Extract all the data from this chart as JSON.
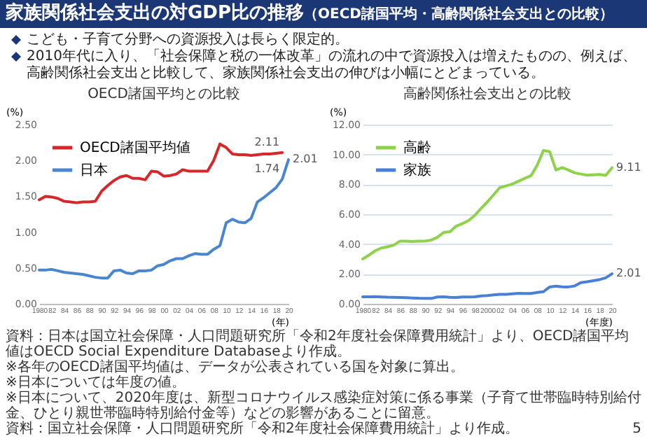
{
  "chart_data": [
    {
      "type": "other",
      "title": "家族関係社会支出の対GDP比の推移",
      "subtitle": "（OECD諸国平均・高齢関係社会支出との比較）",
      "annotations": [
        "こども・子育て分野への資源投入は長らく限定的。",
        "2010年代に入り、「社会保障と税の一体改革」の流れの中で資源投入は増えたものの、例えば、高齢関係社会支出と比較して、家族関係社会支出の伸びは小幅にとどまっている。"
      ]
    },
    {
      "type": "line",
      "title": "OECD諸国平均との比較",
      "ylabel": "(%)",
      "xlabel": "(年)",
      "legend": "top left",
      "grid": false,
      "x": [
        1980,
        1981,
        1982,
        1983,
        1984,
        1985,
        1986,
        1987,
        1988,
        1989,
        1990,
        1991,
        1992,
        1993,
        1994,
        1995,
        1996,
        1997,
        1998,
        1999,
        2000,
        2001,
        2002,
        2003,
        2004,
        2005,
        2006,
        2007,
        2008,
        2009,
        2010,
        2011,
        2012,
        2013,
        2014,
        2015,
        2016,
        2017,
        2018,
        2019,
        2020
      ],
      "xlim": [
        1980,
        2020
      ],
      "xticks": [
        {
          "value": 1980,
          "label": "1980"
        },
        {
          "value": 1982,
          "label": "82"
        },
        {
          "value": 1984,
          "label": "84"
        },
        {
          "value": 1986,
          "label": "86"
        },
        {
          "value": 1988,
          "label": "88"
        },
        {
          "value": 1990,
          "label": "90"
        },
        {
          "value": 1992,
          "label": "92"
        },
        {
          "value": 1994,
          "label": "94"
        },
        {
          "value": 1996,
          "label": "96"
        },
        {
          "value": 1998,
          "label": "98"
        },
        {
          "value": 2000,
          "label": "00"
        },
        {
          "value": 2002,
          "label": "02"
        },
        {
          "value": 2004,
          "label": "04"
        },
        {
          "value": 2006,
          "label": "06"
        },
        {
          "value": 2008,
          "label": "08"
        },
        {
          "value": 2010,
          "label": "10"
        },
        {
          "value": 2012,
          "label": "12"
        },
        {
          "value": 2014,
          "label": "14"
        },
        {
          "value": 2016,
          "label": "16"
        },
        {
          "value": 2018,
          "label": "18"
        },
        {
          "value": 2020,
          "label": "20"
        }
      ],
      "ylim": [
        0,
        2.5
      ],
      "yticks": [
        {
          "value": 0,
          "label": "0.00"
        },
        {
          "value": 0.5,
          "label": "0.50"
        },
        {
          "value": 1,
          "label": "1.00"
        },
        {
          "value": 1.5,
          "label": "1.50"
        },
        {
          "value": 2,
          "label": "2.00"
        },
        {
          "value": 2.5,
          "label": "2.50"
        }
      ],
      "series": [
        {
          "name": "OECD諸国平均値",
          "color": "#d7272b",
          "values": [
            1.45,
            1.5,
            1.49,
            1.47,
            1.43,
            1.42,
            1.41,
            1.42,
            1.42,
            1.43,
            1.57,
            1.65,
            1.72,
            1.77,
            1.79,
            1.75,
            1.75,
            1.73,
            1.85,
            1.84,
            1.78,
            1.79,
            1.81,
            1.87,
            1.85,
            1.85,
            1.85,
            1.85,
            2.0,
            2.23,
            2.18,
            2.09,
            2.08,
            2.08,
            2.07,
            2.08,
            2.09,
            2.09,
            2.1,
            2.11,
            null
          ],
          "value_labels": [
            null,
            null,
            null,
            null,
            null,
            null,
            null,
            null,
            null,
            null,
            null,
            null,
            null,
            null,
            null,
            null,
            null,
            null,
            null,
            null,
            null,
            null,
            null,
            null,
            null,
            null,
            null,
            null,
            null,
            null,
            null,
            null,
            null,
            null,
            null,
            null,
            null,
            null,
            null,
            "2.11",
            null
          ]
        },
        {
          "name": "日本",
          "color": "#4a86d0",
          "values": [
            0.47,
            0.47,
            0.48,
            0.46,
            0.44,
            0.43,
            0.42,
            0.41,
            0.39,
            0.37,
            0.36,
            0.36,
            0.46,
            0.47,
            0.43,
            0.42,
            0.46,
            0.46,
            0.47,
            0.53,
            0.55,
            0.6,
            0.63,
            0.63,
            0.67,
            0.7,
            0.69,
            0.69,
            0.76,
            0.81,
            1.13,
            1.18,
            1.14,
            1.13,
            1.19,
            1.42,
            1.48,
            1.55,
            1.62,
            1.74,
            2.01
          ],
          "value_labels": [
            null,
            null,
            null,
            null,
            null,
            null,
            null,
            null,
            null,
            null,
            null,
            null,
            null,
            null,
            null,
            null,
            null,
            null,
            null,
            null,
            null,
            null,
            null,
            null,
            null,
            null,
            null,
            null,
            null,
            null,
            null,
            null,
            null,
            null,
            null,
            null,
            null,
            null,
            null,
            "1.74",
            "2.01"
          ]
        }
      ],
      "annotations": [
        "資料：日本は国立社会保障・人口問題研究所「令和2年度社会保障費用統計」より、OECD諸国平均値はOECD Social Expenditure Databaseより作成。",
        "※各年のOECD諸国平均値は、データが公表されている国を対象に算出。",
        "※日本については年度の値。",
        "※日本について、2020年度は、新型コロナウイルス感染症対策に係る事業（子育て世帯臨時特別給付金、ひとり親世帯臨時特別給付金等）などの影響があることに留意。"
      ]
    },
    {
      "type": "line",
      "title": "高齢関係社会支出との比較",
      "ylabel": "(%)",
      "xlabel": "(年度)",
      "legend": "top left",
      "grid": "y",
      "x": [
        1980,
        1981,
        1982,
        1983,
        1984,
        1985,
        1986,
        1987,
        1988,
        1989,
        1990,
        1991,
        1992,
        1993,
        1994,
        1995,
        1996,
        1997,
        1998,
        1999,
        2000,
        2001,
        2002,
        2003,
        2004,
        2005,
        2006,
        2007,
        2008,
        2009,
        2010,
        2011,
        2012,
        2013,
        2014,
        2015,
        2016,
        2017,
        2018,
        2019,
        2020
      ],
      "xlim": [
        1980,
        2020
      ],
      "xticks": [
        {
          "value": 1980,
          "label": "1980"
        },
        {
          "value": 1982,
          "label": "82"
        },
        {
          "value": 1984,
          "label": "84"
        },
        {
          "value": 1986,
          "label": "86"
        },
        {
          "value": 1988,
          "label": "88"
        },
        {
          "value": 1990,
          "label": "90"
        },
        {
          "value": 1992,
          "label": "92"
        },
        {
          "value": 1994,
          "label": "94"
        },
        {
          "value": 1996,
          "label": "96"
        },
        {
          "value": 1998,
          "label": "98"
        },
        {
          "value": 2000,
          "label": "2000"
        },
        {
          "value": 2002,
          "label": "02"
        },
        {
          "value": 2004,
          "label": "04"
        },
        {
          "value": 2006,
          "label": "06"
        },
        {
          "value": 2008,
          "label": "08"
        },
        {
          "value": 2010,
          "label": "10"
        },
        {
          "value": 2012,
          "label": "12"
        },
        {
          "value": 2014,
          "label": "14"
        },
        {
          "value": 2016,
          "label": "16"
        },
        {
          "value": 2018,
          "label": "18"
        },
        {
          "value": 2020,
          "label": "20"
        }
      ],
      "ylim": [
        0,
        12
      ],
      "yticks": [
        {
          "value": 0,
          "label": "0.00"
        },
        {
          "value": 2,
          "label": "2.00"
        },
        {
          "value": 4,
          "label": "4.00"
        },
        {
          "value": 6,
          "label": "6.00"
        },
        {
          "value": 8,
          "label": "8.00"
        },
        {
          "value": 10,
          "label": "10.00"
        },
        {
          "value": 12,
          "label": "12.00"
        }
      ],
      "series": [
        {
          "name": "高齢",
          "color": "#8ed14b",
          "values": [
            3.0,
            3.26,
            3.55,
            3.74,
            3.82,
            3.93,
            4.2,
            4.2,
            4.17,
            4.2,
            4.2,
            4.27,
            4.46,
            4.78,
            4.83,
            5.2,
            5.37,
            5.58,
            5.93,
            6.39,
            6.82,
            7.3,
            7.78,
            7.89,
            8.02,
            8.21,
            8.4,
            8.58,
            9.28,
            10.27,
            10.19,
            8.96,
            9.12,
            8.96,
            8.77,
            8.69,
            8.61,
            8.64,
            8.66,
            8.6,
            9.11
          ],
          "value_labels": [
            null,
            null,
            null,
            null,
            null,
            null,
            null,
            null,
            null,
            null,
            null,
            null,
            null,
            null,
            null,
            null,
            null,
            null,
            null,
            null,
            null,
            null,
            null,
            null,
            null,
            null,
            null,
            null,
            null,
            null,
            null,
            null,
            null,
            null,
            null,
            null,
            null,
            null,
            null,
            null,
            "9.11"
          ]
        },
        {
          "name": "家族",
          "color": "#4a7fd6",
          "values": [
            0.47,
            0.47,
            0.48,
            0.46,
            0.44,
            0.43,
            0.42,
            0.41,
            0.39,
            0.37,
            0.36,
            0.36,
            0.46,
            0.47,
            0.43,
            0.42,
            0.46,
            0.46,
            0.47,
            0.53,
            0.55,
            0.6,
            0.63,
            0.63,
            0.67,
            0.7,
            0.69,
            0.69,
            0.76,
            0.81,
            1.13,
            1.18,
            1.14,
            1.13,
            1.19,
            1.42,
            1.48,
            1.55,
            1.62,
            1.74,
            2.01
          ],
          "value_labels": [
            null,
            null,
            null,
            null,
            null,
            null,
            null,
            null,
            null,
            null,
            null,
            null,
            null,
            null,
            null,
            null,
            null,
            null,
            null,
            null,
            null,
            null,
            null,
            null,
            null,
            null,
            null,
            null,
            null,
            null,
            null,
            null,
            null,
            null,
            null,
            null,
            null,
            null,
            null,
            null,
            "2.01"
          ]
        }
      ],
      "annotations": [
        "資料：国立社会保障・人口問題研究所「令和2年度社会保障費用統計」より作成。",
        "5"
      ]
    }
  ]
}
